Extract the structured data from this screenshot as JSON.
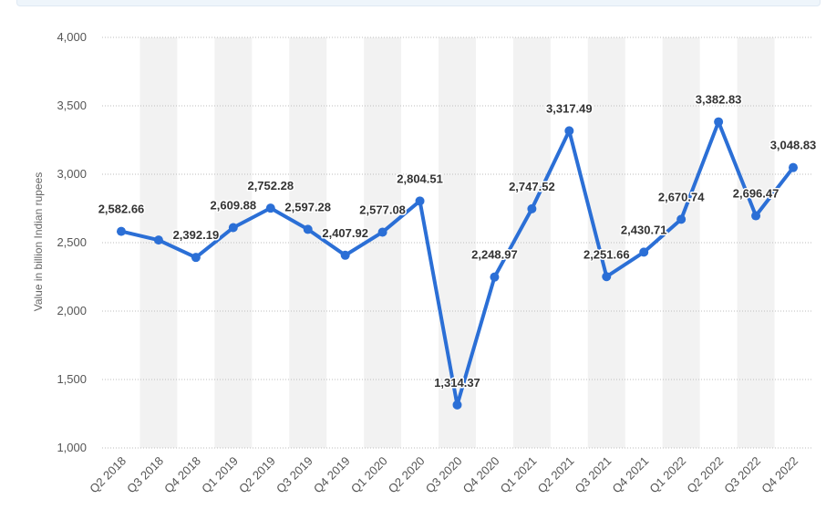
{
  "chart_data": {
    "type": "line",
    "title": "",
    "xlabel": "",
    "ylabel": "Value in billion Indian rupees",
    "ylim": [
      1000,
      4000
    ],
    "yticks": [
      1000,
      1500,
      2000,
      2500,
      3000,
      3500,
      4000
    ],
    "ytick_labels": [
      "1,000",
      "1,500",
      "2,000",
      "2,500",
      "3,000",
      "3,500",
      "4,000"
    ],
    "grid": true,
    "legend": "none",
    "categories": [
      "Q2 2018",
      "Q3 2018",
      "Q4 2018",
      "Q1 2019",
      "Q2 2019",
      "Q3 2019",
      "Q4 2019",
      "Q1 2020",
      "Q2 2020",
      "Q3 2020",
      "Q4 2020",
      "Q1 2021",
      "Q2 2021",
      "Q3 2021",
      "Q4 2021",
      "Q1 2022",
      "Q2 2022",
      "Q3 2022",
      "Q4 2022"
    ],
    "series": [
      {
        "values": [
          2582.66,
          2519,
          2392.19,
          2609.88,
          2752.28,
          2597.28,
          2407.92,
          2577.08,
          2804.51,
          1314.37,
          2248.97,
          2747.52,
          3317.49,
          2251.66,
          2430.71,
          2670.74,
          3382.83,
          2696.47,
          3048.83
        ],
        "data_labels": [
          "2,582.66",
          "",
          "2,392.19",
          "2,609.88",
          "2,752.28",
          "2,597.28",
          "2,407.92",
          "2,577.08",
          "2,804.51",
          "1,314.37",
          "2,248.97",
          "2,747.52",
          "3,317.49",
          "2,251.66",
          "2,430.71",
          "2,670.74",
          "3,382.83",
          "2,696.47",
          "3,048.83"
        ]
      }
    ]
  },
  "colors": {
    "line": "#2b6fd6",
    "grid": "#bdbdbd",
    "band": "#f2f2f2"
  }
}
